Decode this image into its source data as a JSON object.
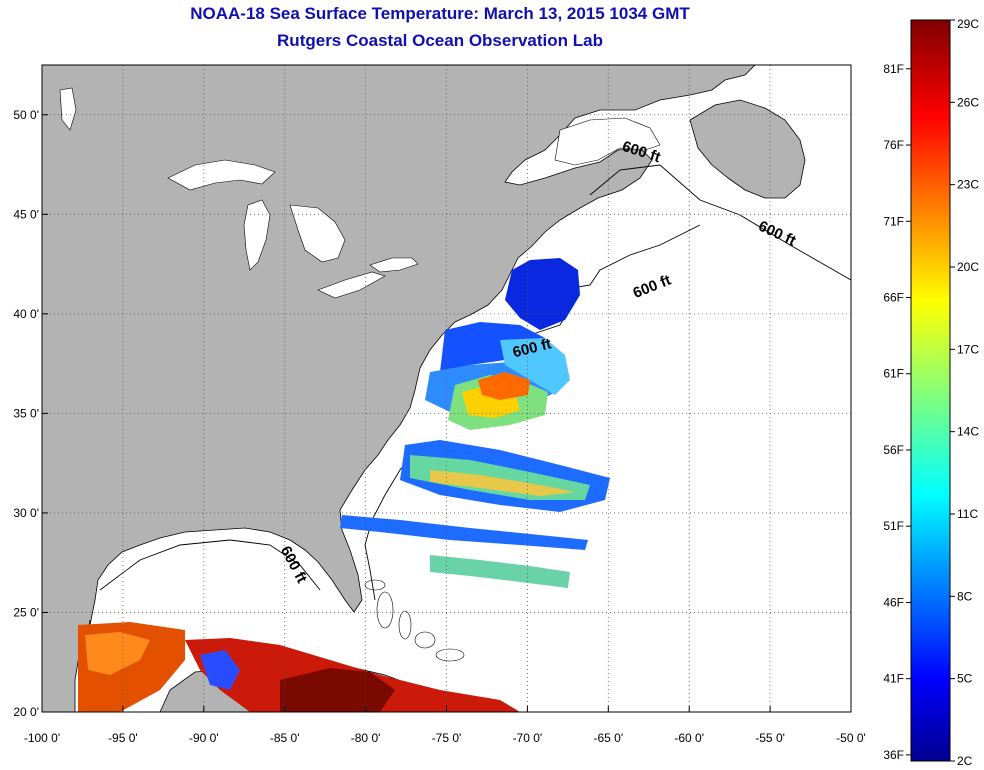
{
  "header": {
    "title": "NOAA-18 Sea Surface Temperature:  March 13, 2015 1034 GMT",
    "subtitle": "Rutgers Coastal Ocean Observation Lab"
  },
  "map": {
    "lon_range": [
      -100,
      -50
    ],
    "lat_range": [
      20,
      52.5
    ],
    "lon_ticks": [
      {
        "value": -100,
        "label": "-100 0'"
      },
      {
        "value": -95,
        "label": "-95 0'"
      },
      {
        "value": -90,
        "label": "-90 0'"
      },
      {
        "value": -85,
        "label": "-85 0'"
      },
      {
        "value": -80,
        "label": "-80 0'"
      },
      {
        "value": -75,
        "label": "-75 0'"
      },
      {
        "value": -70,
        "label": "-70 0'"
      },
      {
        "value": -65,
        "label": "-65 0'"
      },
      {
        "value": -60,
        "label": "-60 0'"
      },
      {
        "value": -55,
        "label": "-55 0'"
      },
      {
        "value": -50,
        "label": "-50 0'"
      }
    ],
    "lat_ticks": [
      {
        "value": 20,
        "label": "20 0'"
      },
      {
        "value": 25,
        "label": "25 0'"
      },
      {
        "value": 30,
        "label": "30 0'"
      },
      {
        "value": 35,
        "label": "35 0'"
      },
      {
        "value": 40,
        "label": "40 0'"
      },
      {
        "value": 45,
        "label": "45 0'"
      },
      {
        "value": 50,
        "label": "50 0'"
      }
    ],
    "grid": true,
    "colors": {
      "land": "#b3b3b3",
      "water": "#ffffff",
      "grid": "#555555"
    },
    "isobath_label": "600 ft"
  },
  "colorbar": {
    "min_c": 2,
    "max_c": 29,
    "fahrenheit_labels": [
      "36F",
      "41F",
      "46F",
      "51F",
      "56F",
      "61F",
      "66F",
      "71F",
      "76F",
      "81F"
    ],
    "celsius_labels": [
      "2C",
      "5C",
      "8C",
      "11C",
      "14C",
      "17C",
      "20C",
      "23C",
      "26C",
      "29C"
    ]
  }
}
